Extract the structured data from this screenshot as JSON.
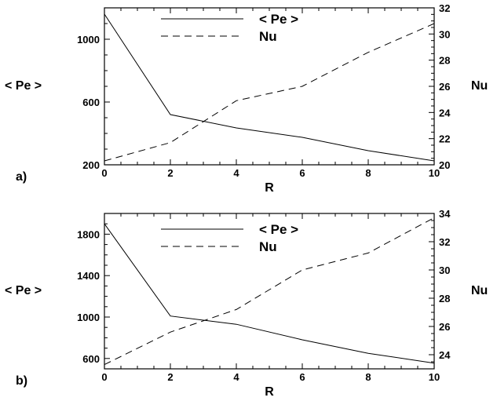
{
  "chart_data": [
    {
      "type": "line",
      "panel_label": "a)",
      "xlabel": "R",
      "ylabel": "< Pe >",
      "y2label": "Nu",
      "xlim": [
        0,
        10
      ],
      "ylim": [
        200,
        1200
      ],
      "y2lim": [
        20,
        32
      ],
      "xticks": [
        0,
        2,
        4,
        6,
        8,
        10
      ],
      "yticks": [
        200,
        600,
        1000
      ],
      "y2ticks": [
        20,
        22,
        24,
        26,
        28,
        30,
        32
      ],
      "legend": "top-center",
      "grid": false,
      "series": [
        {
          "name": "< Pe >",
          "axis": "left",
          "style": "solid",
          "x": [
            0,
            2,
            4,
            6,
            8,
            10
          ],
          "y": [
            1160,
            520,
            435,
            375,
            290,
            225
          ]
        },
        {
          "name": "Nu",
          "axis": "right",
          "style": "dashed",
          "x": [
            0,
            2,
            4,
            6,
            8,
            10
          ],
          "y": [
            20.3,
            21.7,
            24.9,
            26.0,
            28.6,
            30.8
          ]
        }
      ]
    },
    {
      "type": "line",
      "panel_label": "b)",
      "xlabel": "R",
      "ylabel": "< Pe >",
      "y2label": "Nu",
      "xlim": [
        0,
        10
      ],
      "ylim": [
        500,
        2000
      ],
      "y2lim": [
        23,
        34
      ],
      "xticks": [
        0,
        2,
        4,
        6,
        8,
        10
      ],
      "yticks": [
        600,
        1000,
        1400,
        1800
      ],
      "y2ticks": [
        24,
        26,
        28,
        30,
        32,
        34
      ],
      "legend": "top-center",
      "grid": false,
      "series": [
        {
          "name": "< Pe >",
          "axis": "left",
          "style": "solid",
          "x": [
            0,
            2,
            4,
            6,
            8,
            10
          ],
          "y": [
            1900,
            1010,
            930,
            780,
            650,
            555
          ]
        },
        {
          "name": "Nu",
          "axis": "right",
          "style": "dashed",
          "x": [
            0,
            2,
            4,
            6,
            8,
            10
          ],
          "y": [
            23.3,
            25.6,
            27.2,
            30.0,
            31.2,
            33.7
          ]
        }
      ]
    }
  ]
}
